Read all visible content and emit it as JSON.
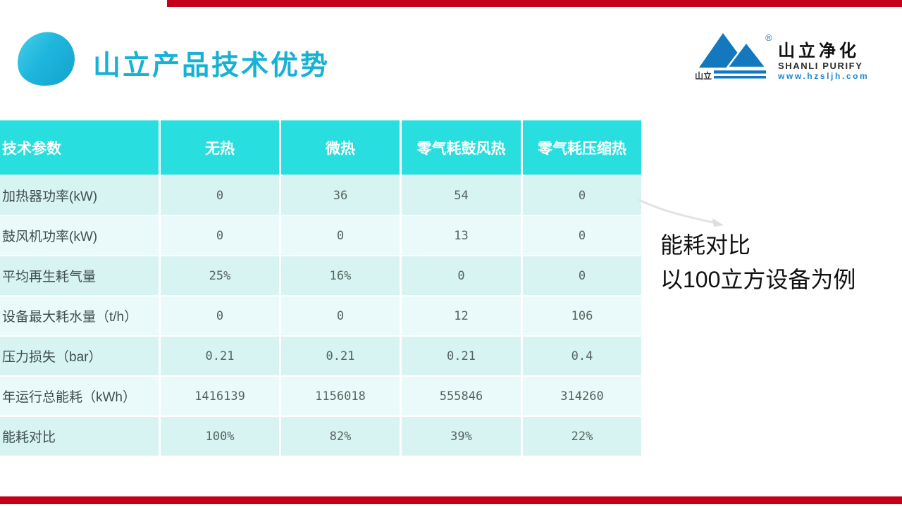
{
  "slide_title": "山立产品技术优势",
  "logo": {
    "mark_text": "山立",
    "registered_mark": "®",
    "name_cn": "山立净化",
    "name_en": "SHANLI PURIFY",
    "website": "www.hzsljh.com"
  },
  "annotation": {
    "line1": "能耗对比",
    "line2": "以100立方设备为例"
  },
  "table": {
    "headers": [
      "技术参数",
      "无热",
      "微热",
      "零气耗鼓风热",
      "零气耗压缩热"
    ],
    "rows": [
      {
        "label": "加热器功率(kW)",
        "values": [
          "0",
          "36",
          "54",
          "0"
        ]
      },
      {
        "label": "鼓风机功率(kW)",
        "values": [
          "0",
          "0",
          "13",
          "0"
        ]
      },
      {
        "label": "平均再生耗气量",
        "values": [
          "25%",
          "16%",
          "0",
          "0"
        ]
      },
      {
        "label": "设备最大耗水量（t/h）",
        "values": [
          "0",
          "0",
          "12",
          "106"
        ]
      },
      {
        "label": "压力损失（bar）",
        "values": [
          "0.21",
          "0.21",
          "0.21",
          "0.4"
        ]
      },
      {
        "label": "年运行总能耗（kWh）",
        "values": [
          "1416139",
          "1156018",
          "555846",
          "314260"
        ]
      },
      {
        "label": "能耗对比",
        "values": [
          "100%",
          "82%",
          "39%",
          "22%"
        ]
      }
    ]
  },
  "colors": {
    "accent_red": "#c40019",
    "header_teal": "#29dede",
    "row_dark": "#d7f3f2",
    "row_light": "#eafafa",
    "title_teal": "#17b2d3",
    "logo_blue": "#1478be"
  }
}
